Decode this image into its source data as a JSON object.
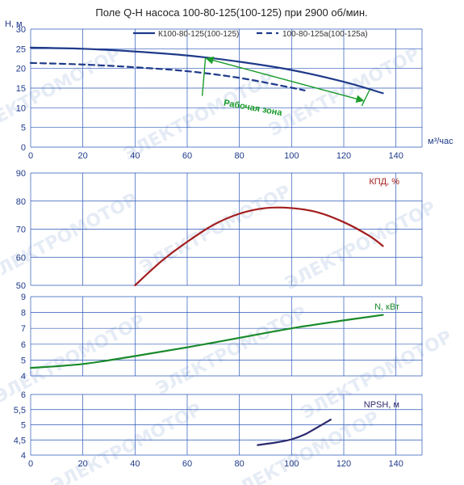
{
  "chart_data": {
    "title": "Поле Q-H насоса 100-80-125(100-125) при 2900 об/мин.",
    "watermark": "ЭЛЕКТРОМОТОР",
    "xlabel": "м³/час",
    "x_ticks": [
      0,
      20,
      40,
      60,
      80,
      100,
      120,
      140
    ],
    "xlim": [
      0,
      150
    ],
    "colors": {
      "grid": "#2a56b8",
      "h_main": "#1f3a8a",
      "h_alt": "#1f3a8a",
      "zone": "#1a9b2a",
      "eff": "#a31d1d",
      "power": "#1a8a2a",
      "npsh": "#2c2a6e",
      "ticks": "#1f3a8a"
    },
    "panels": [
      {
        "id": "head",
        "type": "line",
        "ylabel": "H, м",
        "ylim": [
          0,
          30
        ],
        "y_ticks": [
          0,
          5,
          10,
          15,
          20,
          25,
          30
        ],
        "series": [
          {
            "name": "К100-80-125(100-125)",
            "style": "solid",
            "x": [
              0,
              20,
              40,
              60,
              80,
              100,
              120,
              135
            ],
            "y": [
              25.3,
              25.0,
              24.3,
              23.3,
              21.7,
              19.6,
              16.6,
              13.7
            ]
          },
          {
            "name": "100-80-125а(100-125а)",
            "style": "dashed",
            "x": [
              0,
              20,
              40,
              60,
              80,
              100,
              105
            ],
            "y": [
              21.4,
              21.0,
              20.3,
              19.3,
              17.6,
              15.1,
              14.4
            ]
          }
        ],
        "annotation": {
          "text": "Рабочая зона",
          "q_min": 67,
          "q_max": 130
        }
      },
      {
        "id": "efficiency",
        "type": "line",
        "label": "КПД, %",
        "ylim": [
          50,
          90
        ],
        "y_ticks": [
          50,
          60,
          70,
          80,
          90
        ],
        "series": [
          {
            "name": "КПД, %",
            "x": [
              40,
              50,
              60,
              70,
              80,
              90,
              100,
              110,
              120,
              130,
              135
            ],
            "y": [
              50,
              58.5,
              65.5,
              71.5,
              75.5,
              77.5,
              77.5,
              76,
              72.5,
              67.5,
              64
            ]
          }
        ]
      },
      {
        "id": "power",
        "type": "line",
        "label": "N, кВт",
        "ylim": [
          4,
          9
        ],
        "y_ticks": [
          4,
          5,
          6,
          7,
          8,
          9
        ],
        "series": [
          {
            "name": "N, кВт",
            "x": [
              0,
              20,
              40,
              60,
              80,
              100,
              120,
              135
            ],
            "y": [
              4.5,
              4.75,
              5.25,
              5.8,
              6.4,
              7.0,
              7.5,
              7.85
            ]
          }
        ]
      },
      {
        "id": "npsh",
        "type": "line",
        "label": "NPSH, м",
        "ylim": [
          4,
          6
        ],
        "y_ticks": [
          4,
          4.5,
          5,
          5.5,
          6
        ],
        "y_tick_labels": [
          "4",
          "4,5",
          "5",
          "5,5",
          "6"
        ],
        "series": [
          {
            "name": "NPSH, м",
            "x": [
              87,
              95,
              100,
              105,
              110,
              115
            ],
            "y": [
              4.33,
              4.43,
              4.52,
              4.68,
              4.92,
              5.17
            ]
          }
        ]
      }
    ]
  }
}
